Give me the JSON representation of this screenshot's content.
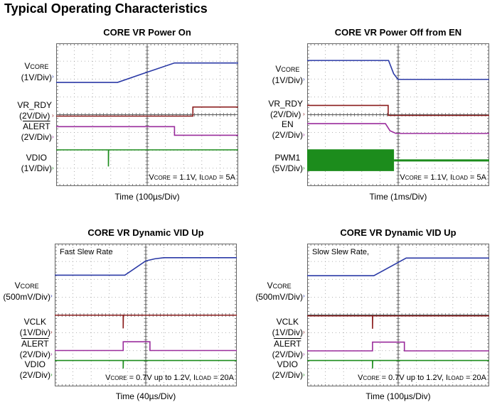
{
  "page_title": "Typical Operating Characteristics",
  "colors": {
    "blue": "#2b3aa6",
    "brown": "#8a1c1c",
    "purple": "#9a2c9c",
    "green": "#1c8c1c"
  },
  "plots": [
    {
      "title": "CORE VR Power On",
      "time_label": "Time  (100µs/Div)",
      "note": "",
      "annotation": [
        {
          "t": "V",
          "sub": false
        },
        {
          "t": "CORE",
          "sub": true
        },
        {
          "t": " = 1.1V, I",
          "sub": false
        },
        {
          "t": "LOAD",
          "sub": true
        },
        {
          "t": " = 5A",
          "sub": false
        }
      ],
      "channels": [
        {
          "name": "V",
          "sub": "CORE",
          "overline": false,
          "scale": "(1V/Div)",
          "color": "blue",
          "points": [
            [
              0,
              5.81
            ],
            [
              3.37,
              5.81
            ],
            [
              4.9,
              6.35
            ],
            [
              6.5,
              6.9
            ],
            [
              10,
              6.9
            ]
          ]
        },
        {
          "name": "VR_RDY",
          "sub": "",
          "overline": false,
          "scale": "(2V/Div)",
          "color": "brown",
          "points": [
            [
              0,
              3.92
            ],
            [
              7.51,
              3.92
            ],
            [
              7.51,
              4.43
            ],
            [
              10,
              4.43
            ]
          ]
        },
        {
          "name": "ALERT",
          "sub": "",
          "overline": true,
          "scale": "(2V/Div)",
          "color": "purple",
          "points": [
            [
              0,
              3.33
            ],
            [
              6.5,
              3.33
            ],
            [
              6.5,
              2.85
            ],
            [
              10,
              2.85
            ]
          ]
        },
        {
          "name": "VDIO",
          "sub": "",
          "overline": false,
          "scale": "(1V/Div)",
          "color": "green",
          "points": [
            [
              0,
              2.03
            ],
            [
              2.87,
              2.03
            ],
            [
              2.87,
              1.1
            ],
            [
              2.88,
              2.03
            ],
            [
              10,
              2.03
            ]
          ]
        }
      ]
    },
    {
      "title": "CORE VR Power Off from EN",
      "time_label": "Time  (1ms/Div)",
      "note": "",
      "annotation": [
        {
          "t": "V",
          "sub": false
        },
        {
          "t": "CORE",
          "sub": true
        },
        {
          "t": " = 1.1V, I",
          "sub": false
        },
        {
          "t": "LOAD",
          "sub": true
        },
        {
          "t": " = 5A",
          "sub": false
        }
      ],
      "channels": [
        {
          "name": "V",
          "sub": "CORE",
          "overline": false,
          "scale": "(1V/Div)",
          "color": "blue",
          "points": [
            [
              0,
              7.04
            ],
            [
              4.47,
              7.04
            ],
            [
              4.75,
              6.3
            ],
            [
              4.99,
              5.98
            ],
            [
              10,
              5.98
            ]
          ]
        },
        {
          "name": "VR_RDY",
          "sub": "",
          "overline": false,
          "scale": "(2V/Div)",
          "color": "brown",
          "points": [
            [
              0,
              4.52
            ],
            [
              4.45,
              4.52
            ],
            [
              4.45,
              3.96
            ],
            [
              10,
              3.96
            ]
          ]
        },
        {
          "name": "EN",
          "sub": "",
          "overline": false,
          "scale": "(2V/Div)",
          "color": "purple",
          "points": [
            [
              0,
              3.5
            ],
            [
              4.3,
              3.5
            ],
            [
              4.55,
              3.1
            ],
            [
              4.88,
              2.95
            ],
            [
              10,
              2.95
            ]
          ]
        },
        {
          "name": "PWM1",
          "sub": "",
          "overline": false,
          "scale": "(5V/Div)",
          "color": "green",
          "points": [
            [
              4.77,
              1.44
            ],
            [
              10,
              1.44
            ]
          ],
          "burst": {
            "x_end": 4.77,
            "y_low": 0.84,
            "y_high": 2.06
          }
        }
      ]
    },
    {
      "title": "CORE VR Dynamic VID Up",
      "time_label": "Time  (40µs/Div)",
      "note": "Fast Slew Rate",
      "annotation": [
        {
          "t": "V",
          "sub": false
        },
        {
          "t": "CORE",
          "sub": true
        },
        {
          "t": " = 0.7V up to 1.2V, I",
          "sub": false
        },
        {
          "t": "LOAD",
          "sub": true
        },
        {
          "t": " = 20A",
          "sub": false
        }
      ],
      "channels": [
        {
          "name": "V",
          "sub": "CORE",
          "overline": false,
          "scale": "(500mV/Div)",
          "color": "blue",
          "points": [
            [
              0,
              6.23
            ],
            [
              3.85,
              6.23
            ],
            [
              5.0,
              7.03
            ],
            [
              5.5,
              7.15
            ],
            [
              6.0,
              7.21
            ],
            [
              10,
              7.21
            ]
          ]
        },
        {
          "name": "VCLK",
          "sub": "",
          "overline": false,
          "scale": "(1V/Div)",
          "color": "brown",
          "points": [
            [
              0,
              3.99
            ],
            [
              3.76,
              3.99
            ],
            [
              3.76,
              3.25
            ],
            [
              3.77,
              3.99
            ],
            [
              10,
              3.99
            ]
          ]
        },
        {
          "name": "ALERT",
          "sub": "",
          "overline": true,
          "scale": "(2V/Div)",
          "color": "purple",
          "points": [
            [
              0,
              2.01
            ],
            [
              3.76,
              2.01
            ],
            [
              3.76,
              2.5
            ],
            [
              5.23,
              2.5
            ],
            [
              5.23,
              2.01
            ],
            [
              10,
              2.01
            ]
          ]
        },
        {
          "name": "VDIO",
          "sub": "",
          "overline": false,
          "scale": "(2V/Div)",
          "color": "green",
          "points": [
            [
              0,
              1.45
            ],
            [
              3.76,
              1.45
            ],
            [
              3.76,
              1.0
            ],
            [
              3.77,
              1.45
            ],
            [
              10,
              1.45
            ]
          ]
        }
      ]
    },
    {
      "title": "CORE VR Dynamic VID Up",
      "time_label": "Time  (100µs/Div)",
      "note": "Slow Slew Rate,",
      "annotation": [
        {
          "t": "V",
          "sub": false
        },
        {
          "t": "CORE",
          "sub": true
        },
        {
          "t": " = 0.7V up to 1.2V, I",
          "sub": false
        },
        {
          "t": "LOAD",
          "sub": true
        },
        {
          "t": " = 20A",
          "sub": false
        }
      ],
      "channels": [
        {
          "name": "V",
          "sub": "CORE",
          "overline": false,
          "scale": "(500mV/Div)",
          "color": "blue",
          "points": [
            [
              0,
              6.2
            ],
            [
              3.66,
              6.2
            ],
            [
              5.44,
              7.19
            ],
            [
              10,
              7.19
            ]
          ]
        },
        {
          "name": "VCLK",
          "sub": "",
          "overline": false,
          "scale": "(1V/Div)",
          "color": "brown",
          "points": [
            [
              0,
              3.95
            ],
            [
              3.59,
              3.95
            ],
            [
              3.59,
              3.23
            ],
            [
              3.6,
              3.95
            ],
            [
              10,
              3.95
            ]
          ]
        },
        {
          "name": "ALERT",
          "sub": "",
          "overline": true,
          "scale": "(2V/Div)",
          "color": "purple",
          "points": [
            [
              0,
              1.99
            ],
            [
              3.59,
              1.99
            ],
            [
              3.59,
              2.48
            ],
            [
              5.34,
              2.48
            ],
            [
              5.34,
              1.99
            ],
            [
              10,
              1.99
            ]
          ]
        },
        {
          "name": "VDIO",
          "sub": "",
          "overline": false,
          "scale": "(2V/Div)",
          "color": "green",
          "points": [
            [
              0,
              1.45
            ],
            [
              3.59,
              1.45
            ],
            [
              3.59,
              1.0
            ],
            [
              3.6,
              1.45
            ],
            [
              10,
              1.45
            ]
          ]
        }
      ]
    }
  ]
}
